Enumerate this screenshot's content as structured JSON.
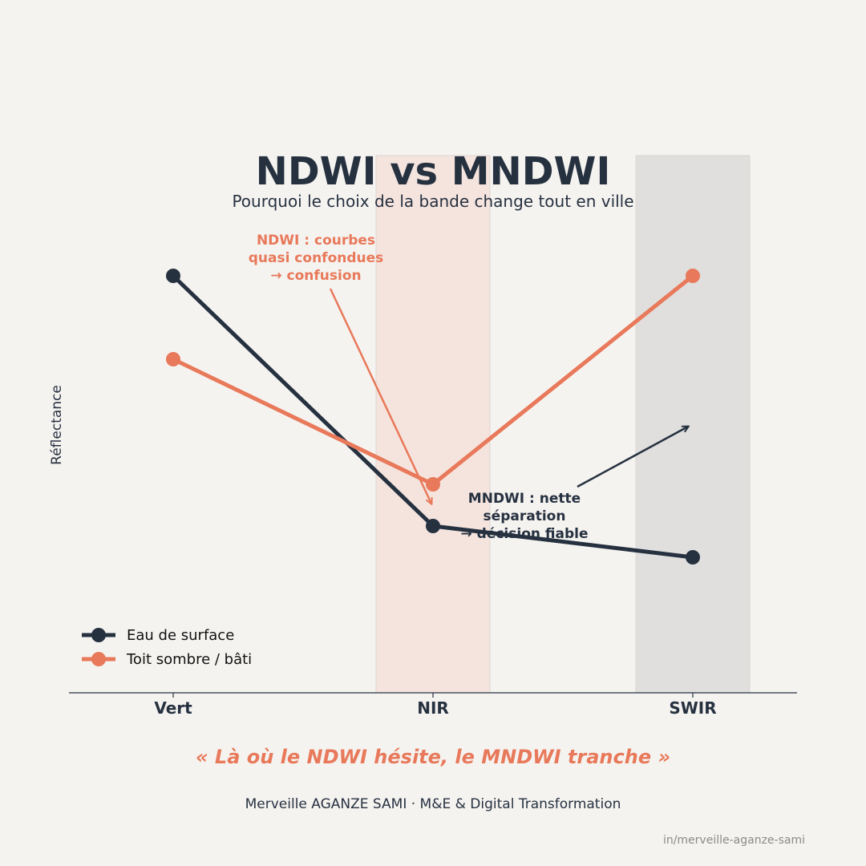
{
  "chart_data": {
    "type": "line",
    "title": "NDWI vs MNDWI",
    "subtitle": "Pourquoi le choix de la bande change tout en ville",
    "ylabel": "Réflectance",
    "xlabel": "",
    "categories": [
      "Vert",
      "NIR",
      "SWIR"
    ],
    "ylim": [
      0,
      1
    ],
    "grid": false,
    "legend_position": "bottom-left",
    "highlight_bands": [
      {
        "category": "NIR",
        "color": "#f5e4de"
      },
      {
        "category": "SWIR",
        "color": "#e0dfde"
      }
    ],
    "series": [
      {
        "name": "Eau de surface",
        "color": "#263140",
        "values": [
          0.8,
          0.32,
          0.26
        ]
      },
      {
        "name": "Toit sombre / bâti",
        "color": "#e8795a",
        "values": [
          0.64,
          0.4,
          0.8
        ]
      }
    ],
    "annotations": [
      {
        "lines": [
          "NDWI : courbes",
          "quasi confondues",
          "→ confusion"
        ],
        "color": "#e8795a",
        "target_category": "NIR"
      },
      {
        "lines": [
          "MNDWI : nette",
          "séparation",
          "→ décision fiable"
        ],
        "color": "#263140",
        "target_category": "SWIR"
      }
    ]
  },
  "footer": {
    "quote": "« Là où le NDWI hésite, le MNDWI tranche »",
    "author": "Merveille AGANZE SAMI  ·  M&E & Digital Transformation",
    "handle": "in/merveille-aganze-sami"
  },
  "colors": {
    "background": "#f5f3f0",
    "navy": "#263140",
    "coral": "#e8795a"
  }
}
